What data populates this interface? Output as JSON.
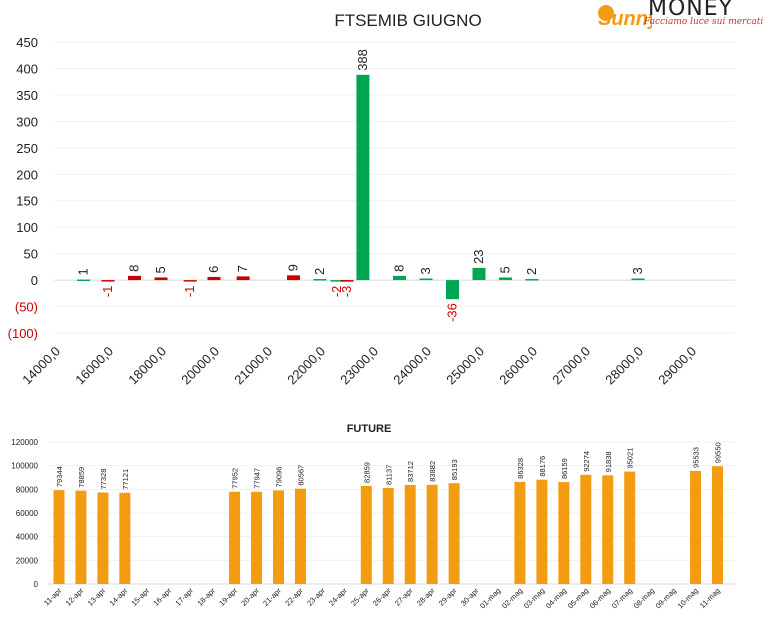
{
  "logo": {
    "sun_text": "Sunny",
    "wordmark": "MONEY",
    "tagline": "Facciamo luce sui mercati",
    "color_accent": "#f39c12",
    "color_tagline": "#c0392b"
  },
  "chart_data": [
    {
      "type": "bar",
      "title": "FTSEMIB GIUGNO",
      "categories": [
        "14000,0",
        "16000,0",
        "18000,0",
        "20000,0",
        "21000,0",
        "22000,0",
        "23000,0",
        "24000,0",
        "25000,0",
        "26000,0",
        "27000,0",
        "28000,0",
        "29000,0"
      ],
      "yticks": [
        "450",
        "400",
        "350",
        "300",
        "250",
        "200",
        "150",
        "100",
        "50",
        "0",
        "(50)",
        "(100)"
      ],
      "ylim": [
        -100,
        450
      ],
      "grid": true,
      "colors": {
        "positive": "#00a651",
        "negative": "#cc0000",
        "label_negative": "#cc0000"
      },
      "bars": [
        {
          "pos": 0.54,
          "value": 1,
          "color": "positive"
        },
        {
          "pos": 1.0,
          "value": -1,
          "color": "negative"
        },
        {
          "pos": 1.5,
          "value": 8,
          "color": "negative"
        },
        {
          "pos": 2.0,
          "value": 5,
          "color": "negative"
        },
        {
          "pos": 2.55,
          "value": -1,
          "color": "negative"
        },
        {
          "pos": 3.0,
          "value": 6,
          "color": "negative"
        },
        {
          "pos": 3.55,
          "value": 7,
          "color": "negative"
        },
        {
          "pos": 4.5,
          "value": 9,
          "color": "negative"
        },
        {
          "pos": 5.0,
          "value": 2,
          "color": "positive"
        },
        {
          "pos": 5.32,
          "value": -2,
          "color": "positive"
        },
        {
          "pos": 5.51,
          "value": -3,
          "color": "negative"
        },
        {
          "pos": 5.81,
          "value": 388,
          "color": "positive"
        },
        {
          "pos": 6.5,
          "value": 8,
          "color": "positive"
        },
        {
          "pos": 7.0,
          "value": 3,
          "color": "positive"
        },
        {
          "pos": 7.5,
          "value": -36,
          "color": "positive"
        },
        {
          "pos": 8.0,
          "value": 23,
          "color": "positive"
        },
        {
          "pos": 8.5,
          "value": 5,
          "color": "positive"
        },
        {
          "pos": 9.0,
          "value": 2,
          "color": "positive"
        },
        {
          "pos": 11.0,
          "value": 3,
          "color": "positive"
        }
      ]
    },
    {
      "type": "bar",
      "title": "FUTURE",
      "color": "#f39c12",
      "categories": [
        "11-apr",
        "12-apr",
        "13-apr",
        "14-apr",
        "15-apr",
        "16-apr",
        "17-apr",
        "18-apr",
        "19-apr",
        "20-apr",
        "21-apr",
        "22-apr",
        "23-apr",
        "24-apr",
        "25-apr",
        "26-apr",
        "27-apr",
        "28-apr",
        "29-apr",
        "30-apr",
        "01-mag",
        "02-mag",
        "03-mag",
        "04-mag",
        "05-mag",
        "06-mag",
        "07-mag",
        "08-mag",
        "09-mag",
        "10-mag",
        "11-mag"
      ],
      "values": [
        79344,
        78859,
        77328,
        77121,
        null,
        null,
        null,
        null,
        77952,
        77947,
        79096,
        80567,
        null,
        null,
        82859,
        81137,
        83712,
        83882,
        85193,
        null,
        null,
        86328,
        88176,
        86159,
        92274,
        91838,
        95021,
        null,
        null,
        95533,
        99550
      ],
      "yticks": [
        "120000",
        "100000",
        "80000",
        "60000",
        "40000",
        "20000",
        "0"
      ],
      "ylim": [
        0,
        120000
      ],
      "grid": true
    }
  ]
}
